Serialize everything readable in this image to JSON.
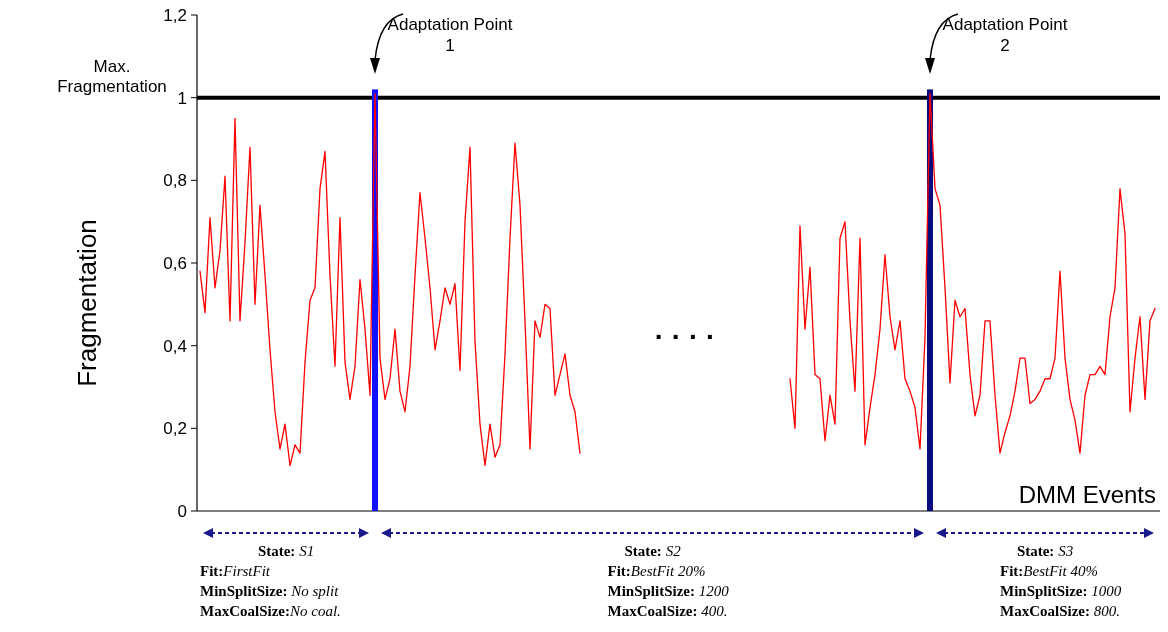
{
  "chart_data": {
    "type": "line",
    "xlabel": "DMM Events",
    "ylabel": "Fragmentation",
    "categories": [
      null,
      null,
      null,
      null,
      null,
      null,
      null,
      null,
      null,
      null,
      null,
      null,
      null,
      null,
      null,
      null,
      null,
      null,
      null,
      null,
      null,
      null,
      null,
      null,
      null,
      null,
      null,
      null,
      null,
      null,
      null,
      null,
      null,
      null,
      null,
      null,
      null,
      null,
      null,
      null,
      null,
      null,
      null,
      null,
      null,
      null,
      null,
      null,
      null,
      null,
      null,
      null,
      null,
      null,
      null,
      null,
      null,
      null,
      null,
      null,
      null,
      null,
      null,
      null,
      null,
      null,
      null,
      null,
      null,
      null,
      null,
      null,
      null,
      null,
      null,
      null,
      null,
      null,
      null,
      null,
      null,
      null,
      null,
      null,
      null,
      null,
      null,
      null,
      null,
      null,
      null,
      null,
      null,
      null,
      null,
      null,
      null,
      null,
      null,
      null,
      null,
      null,
      null,
      null,
      null,
      null,
      null,
      null,
      null,
      null,
      null,
      null,
      null,
      null,
      null,
      null,
      null,
      null,
      null,
      null,
      null,
      null,
      null,
      null,
      null,
      null,
      null,
      null,
      null,
      null,
      null,
      null,
      null,
      null,
      null,
      null,
      null,
      null,
      null,
      null,
      null,
      null,
      null,
      null,
      null,
      null,
      null,
      null,
      null,
      null,
      null,
      null,
      null,
      null,
      null,
      null,
      null,
      null,
      null,
      null,
      null,
      null,
      null,
      null,
      null,
      null,
      null,
      null,
      null,
      null,
      null,
      null,
      null,
      null,
      null,
      null,
      null,
      null,
      null,
      null,
      null,
      null,
      null,
      null,
      null,
      null,
      null,
      null,
      null,
      null,
      null,
      null
    ],
    "series": [
      {
        "color": "#ff0000",
        "values": [
          0.58,
          0.48,
          0.71,
          0.54,
          0.63,
          0.81,
          0.46,
          0.95,
          0.46,
          0.65,
          0.88,
          0.5,
          0.74,
          0.57,
          0.39,
          0.24,
          0.15,
          0.21,
          0.11,
          0.16,
          0.14,
          0.36,
          0.51,
          0.54,
          0.78,
          0.87,
          0.57,
          0.35,
          0.71,
          0.36,
          0.27,
          0.35,
          0.56,
          0.44,
          0.28,
          1.01,
          0.37,
          0.27,
          0.32,
          0.44,
          0.29,
          0.24,
          0.35,
          0.57,
          0.77,
          0.66,
          0.54,
          0.39,
          0.46,
          0.54,
          0.5,
          0.55,
          0.34,
          0.7,
          0.88,
          0.41,
          0.21,
          0.11,
          0.21,
          0.13,
          0.16,
          0.38,
          0.66,
          0.89,
          0.74,
          0.46,
          0.15,
          0.46,
          0.42,
          0.5,
          0.49,
          0.28,
          0.33,
          0.38,
          0.28,
          0.24,
          0.14,
          null,
          null,
          null,
          null,
          null,
          null,
          null,
          null,
          null,
          null,
          null,
          null,
          null,
          null,
          null,
          null,
          null,
          null,
          null,
          null,
          null,
          null,
          null,
          null,
          null,
          null,
          null,
          null,
          null,
          null,
          null,
          null,
          null,
          null,
          null,
          null,
          null,
          null,
          null,
          null,
          null,
          0.32,
          0.2,
          0.69,
          0.44,
          0.59,
          0.33,
          0.32,
          0.17,
          0.28,
          0.21,
          0.66,
          0.7,
          0.46,
          0.29,
          0.66,
          0.16,
          0.25,
          0.33,
          0.44,
          0.62,
          0.47,
          0.39,
          0.46,
          0.32,
          0.29,
          0.25,
          0.15,
          0.42,
          1.01,
          0.78,
          0.74,
          0.54,
          0.31,
          0.51,
          0.47,
          0.49,
          0.33,
          0.23,
          0.28,
          0.46,
          0.46,
          0.28,
          0.14,
          0.19,
          0.23,
          0.29,
          0.37,
          0.37,
          0.26,
          0.27,
          0.29,
          0.32,
          0.32,
          0.37,
          0.58,
          0.37,
          0.27,
          0.22,
          0.14,
          0.28,
          0.33,
          0.33,
          0.35,
          0.33,
          0.47,
          0.54,
          0.78,
          0.67,
          0.24,
          0.37,
          0.47,
          0.27,
          0.46,
          0.49
        ]
      },
      {
        "type": "bar",
        "colors": [
          null,
          null,
          null,
          null,
          null,
          null,
          null,
          null,
          null,
          null,
          null,
          null,
          null,
          null,
          null,
          null,
          null,
          null,
          null,
          null,
          null,
          null,
          null,
          null,
          null,
          null,
          null,
          null,
          null,
          null,
          null,
          null,
          null,
          null,
          null,
          "#1010ff",
          null,
          null,
          null,
          null,
          null,
          null,
          null,
          null,
          null,
          null,
          null,
          null,
          null,
          null,
          null,
          null,
          null,
          null,
          null,
          null,
          null,
          null,
          null,
          null,
          null,
          null,
          null,
          null,
          null,
          null,
          null,
          null,
          null,
          null,
          null,
          null,
          null,
          null,
          null,
          null,
          null,
          null,
          null,
          null,
          null,
          null,
          null,
          null,
          null,
          null,
          null,
          null,
          null,
          null,
          null,
          null,
          null,
          null,
          null,
          null,
          null,
          null,
          null,
          null,
          null,
          null,
          null,
          null,
          null,
          null,
          null,
          null,
          null,
          null,
          null,
          null,
          null,
          null,
          null,
          null,
          null,
          null,
          null,
          null,
          null,
          null,
          null,
          null,
          null,
          null,
          null,
          null,
          null,
          null,
          null,
          null,
          null,
          null,
          null,
          null,
          null,
          null,
          null,
          null,
          null,
          null,
          null,
          null,
          null,
          null,
          "#0a0a80",
          null,
          null,
          null,
          null,
          null,
          null,
          null,
          null,
          null,
          null,
          null,
          null,
          null,
          null,
          null,
          null,
          null,
          null,
          null,
          null,
          null,
          null,
          null,
          null,
          null,
          null,
          null,
          null,
          null,
          null,
          null,
          null,
          null,
          null,
          null,
          null,
          null,
          null,
          null,
          null,
          null,
          null,
          null,
          null,
          null
        ],
        "values": [
          null,
          null,
          null,
          null,
          null,
          null,
          null,
          null,
          null,
          null,
          null,
          null,
          null,
          null,
          null,
          null,
          null,
          null,
          null,
          null,
          null,
          null,
          null,
          null,
          null,
          null,
          null,
          null,
          null,
          null,
          null,
          null,
          null,
          null,
          null,
          1.02,
          null,
          null,
          null,
          null,
          null,
          null,
          null,
          null,
          null,
          null,
          null,
          null,
          null,
          null,
          null,
          null,
          null,
          null,
          null,
          null,
          null,
          null,
          null,
          null,
          null,
          null,
          null,
          null,
          null,
          null,
          null,
          null,
          null,
          null,
          null,
          null,
          null,
          null,
          null,
          null,
          null,
          null,
          null,
          null,
          null,
          null,
          null,
          null,
          null,
          null,
          null,
          null,
          null,
          null,
          null,
          null,
          null,
          null,
          null,
          null,
          null,
          null,
          null,
          null,
          null,
          null,
          null,
          null,
          null,
          null,
          null,
          null,
          null,
          null,
          null,
          null,
          null,
          null,
          null,
          null,
          null,
          null,
          null,
          null,
          null,
          null,
          null,
          null,
          null,
          null,
          null,
          null,
          null,
          null,
          null,
          null,
          null,
          null,
          null,
          null,
          null,
          null,
          null,
          null,
          null,
          null,
          null,
          null,
          null,
          null,
          1.02,
          null,
          null,
          null,
          null,
          null,
          null,
          null,
          null,
          null,
          null,
          null,
          null,
          null,
          null,
          null,
          null,
          null,
          null,
          null,
          null,
          null,
          null,
          null,
          null,
          null,
          null,
          null,
          null,
          null,
          null,
          null,
          null,
          null,
          null,
          null,
          null,
          null,
          null,
          null,
          null,
          null,
          null,
          null,
          null,
          null
        ]
      }
    ],
    "ylim": [
      0,
      1.2
    ],
    "yticks": [
      0,
      {
        "value": 0.2,
        "label": "0,2"
      },
      {
        "value": 0.4,
        "label": "0,4"
      },
      {
        "value": 0.6,
        "label": "0,6"
      },
      {
        "value": 0.8,
        "label": "0,8"
      },
      1,
      {
        "value": 1.2,
        "label": "1,2"
      }
    ],
    "ref_lines": [
      {
        "axis": "y",
        "value": 1,
        "label": "Max. Fragmentation",
        "color": "#000000"
      }
    ],
    "annotations": [
      "Adaptation Point 1",
      "Adaptation Point 2",
      "· · · ·",
      "State: S1",
      "Fit:FirstFit",
      "MinSplitSize: No split",
      "MaxCoalSize:No coal.",
      "State: S2",
      "Fit:BestFit 20%",
      "MinSplitSize: 1200",
      "MaxCoalSize: 400.",
      "State: S3",
      "Fit:BestFit 40%",
      "MinSplitSize: 1000",
      "MaxCoalSize: 800."
    ]
  }
}
